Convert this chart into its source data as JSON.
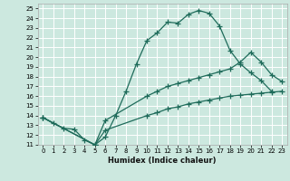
{
  "title": "",
  "xlabel": "Humidex (Indice chaleur)",
  "bg_color": "#cce8df",
  "grid_color": "#ffffff",
  "line_color": "#1e6b5a",
  "xlim": [
    -0.5,
    23.5
  ],
  "ylim": [
    11,
    25.5
  ],
  "xticks": [
    0,
    1,
    2,
    3,
    4,
    5,
    6,
    7,
    8,
    9,
    10,
    11,
    12,
    13,
    14,
    15,
    16,
    17,
    18,
    19,
    20,
    21,
    22,
    23
  ],
  "yticks": [
    11,
    12,
    13,
    14,
    15,
    16,
    17,
    18,
    19,
    20,
    21,
    22,
    23,
    24,
    25
  ],
  "curve1_x": [
    0,
    1,
    2,
    3,
    4,
    5,
    6,
    7,
    8,
    9,
    10,
    11,
    12,
    13,
    14,
    15,
    16,
    17,
    18,
    19,
    20,
    21,
    22
  ],
  "curve1_y": [
    13.8,
    13.2,
    12.7,
    12.6,
    11.5,
    11.0,
    11.8,
    14.0,
    16.5,
    19.3,
    21.7,
    22.5,
    23.6,
    23.5,
    24.4,
    24.8,
    24.5,
    23.2,
    20.7,
    19.3,
    18.4,
    17.6,
    16.5
  ],
  "curve2_x": [
    0,
    5,
    6,
    10,
    11,
    12,
    13,
    14,
    15,
    16,
    17,
    18,
    19,
    20,
    21,
    22,
    23
  ],
  "curve2_y": [
    13.8,
    11.0,
    13.5,
    16.0,
    16.5,
    17.0,
    17.3,
    17.6,
    17.9,
    18.2,
    18.5,
    18.8,
    19.5,
    20.5,
    19.5,
    18.2,
    17.5
  ],
  "curve3_x": [
    0,
    5,
    6,
    10,
    11,
    12,
    13,
    14,
    15,
    16,
    17,
    18,
    19,
    20,
    21,
    22,
    23
  ],
  "curve3_y": [
    13.8,
    11.0,
    12.5,
    14.0,
    14.3,
    14.7,
    14.9,
    15.2,
    15.4,
    15.6,
    15.8,
    16.0,
    16.1,
    16.2,
    16.3,
    16.4,
    16.5
  ]
}
